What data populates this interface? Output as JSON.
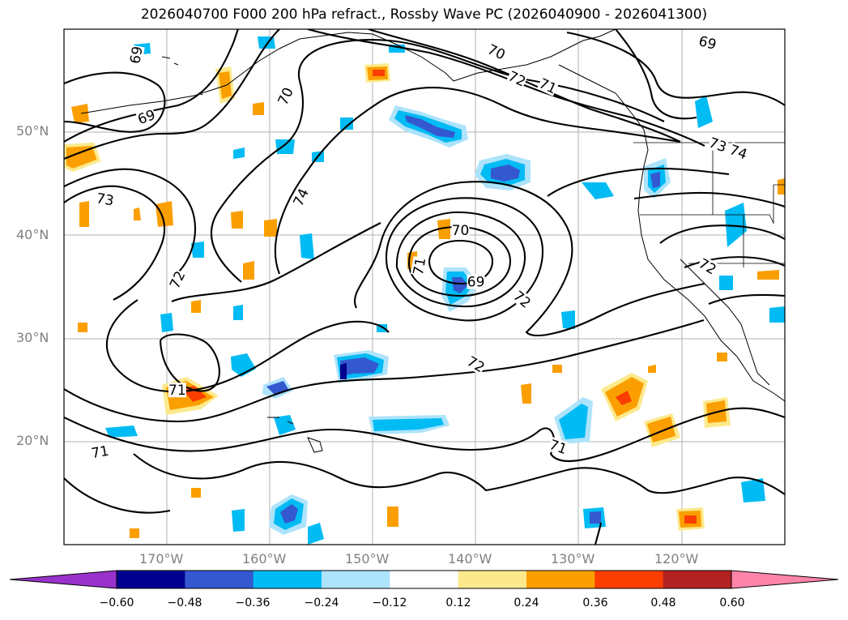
{
  "title": "2026040700 F000 200 hPa refract., Rossby Wave PC (2026040900 - 2026041300)",
  "map": {
    "lat_ticks": [
      "50°N",
      "40°N",
      "30°N",
      "20°N"
    ],
    "lon_ticks": [
      "170°W",
      "160°W",
      "150°W",
      "140°W",
      "130°W",
      "120°W"
    ],
    "lat_range": [
      10,
      60
    ],
    "lon_range": [
      -180,
      -110
    ],
    "contour_labels": [
      {
        "text": "69",
        "lon": -173.0,
        "lat": 57.5,
        "rot": -80
      },
      {
        "text": "69",
        "lon": -172.0,
        "lat": 51.5,
        "rot": -20
      },
      {
        "text": "70",
        "lon": -158.5,
        "lat": 53.5,
        "rot": -65
      },
      {
        "text": "70",
        "lon": -138.0,
        "lat": 57.8,
        "rot": 25
      },
      {
        "text": "72",
        "lon": -136.0,
        "lat": 55.2,
        "rot": 25
      },
      {
        "text": "71",
        "lon": -133.0,
        "lat": 54.5,
        "rot": 25
      },
      {
        "text": "69",
        "lon": -117.5,
        "lat": 58.7,
        "rot": 15
      },
      {
        "text": "73",
        "lon": -116.5,
        "lat": 48.8,
        "rot": 20
      },
      {
        "text": "74",
        "lon": -114.5,
        "lat": 48.1,
        "rot": 20
      },
      {
        "text": "73",
        "lon": -176.0,
        "lat": 43.5,
        "rot": 10
      },
      {
        "text": "74",
        "lon": -157.0,
        "lat": 43.7,
        "rot": -65
      },
      {
        "text": "72",
        "lon": -169.0,
        "lat": 35.7,
        "rot": -65
      },
      {
        "text": "70",
        "lon": -141.5,
        "lat": 40.5,
        "rot": 0
      },
      {
        "text": "71",
        "lon": -145.5,
        "lat": 37.0,
        "rot": -80
      },
      {
        "text": "69",
        "lon": -140.0,
        "lat": 35.5,
        "rot": 0
      },
      {
        "text": "72",
        "lon": -135.5,
        "lat": 33.8,
        "rot": 40
      },
      {
        "text": "72",
        "lon": -140.0,
        "lat": 27.5,
        "rot": 30
      },
      {
        "text": "72",
        "lon": -117.5,
        "lat": 37.0,
        "rot": 30
      },
      {
        "text": "71",
        "lon": -169.0,
        "lat": 25.0,
        "rot": 0
      },
      {
        "text": "71",
        "lon": -176.5,
        "lat": 19.0,
        "rot": -10
      },
      {
        "text": "71",
        "lon": -132.0,
        "lat": 19.5,
        "rot": 20
      }
    ]
  },
  "colorbar": {
    "colors": [
      "#9932cc",
      "#000090",
      "#3458cf",
      "#00bbf4",
      "#ade3fb",
      "#ffffff",
      "#fce98c",
      "#fb9f00",
      "#fb3e00",
      "#b22222",
      "#fe85a9"
    ],
    "tick_labels": [
      "−0.60",
      "−0.48",
      "−0.36",
      "−0.24",
      "−0.12",
      "0.12",
      "0.24",
      "0.36",
      "0.48",
      "0.60"
    ]
  },
  "colors": {
    "grid": "#b0b0b0",
    "contour": "#000000",
    "coast": "#000000"
  }
}
